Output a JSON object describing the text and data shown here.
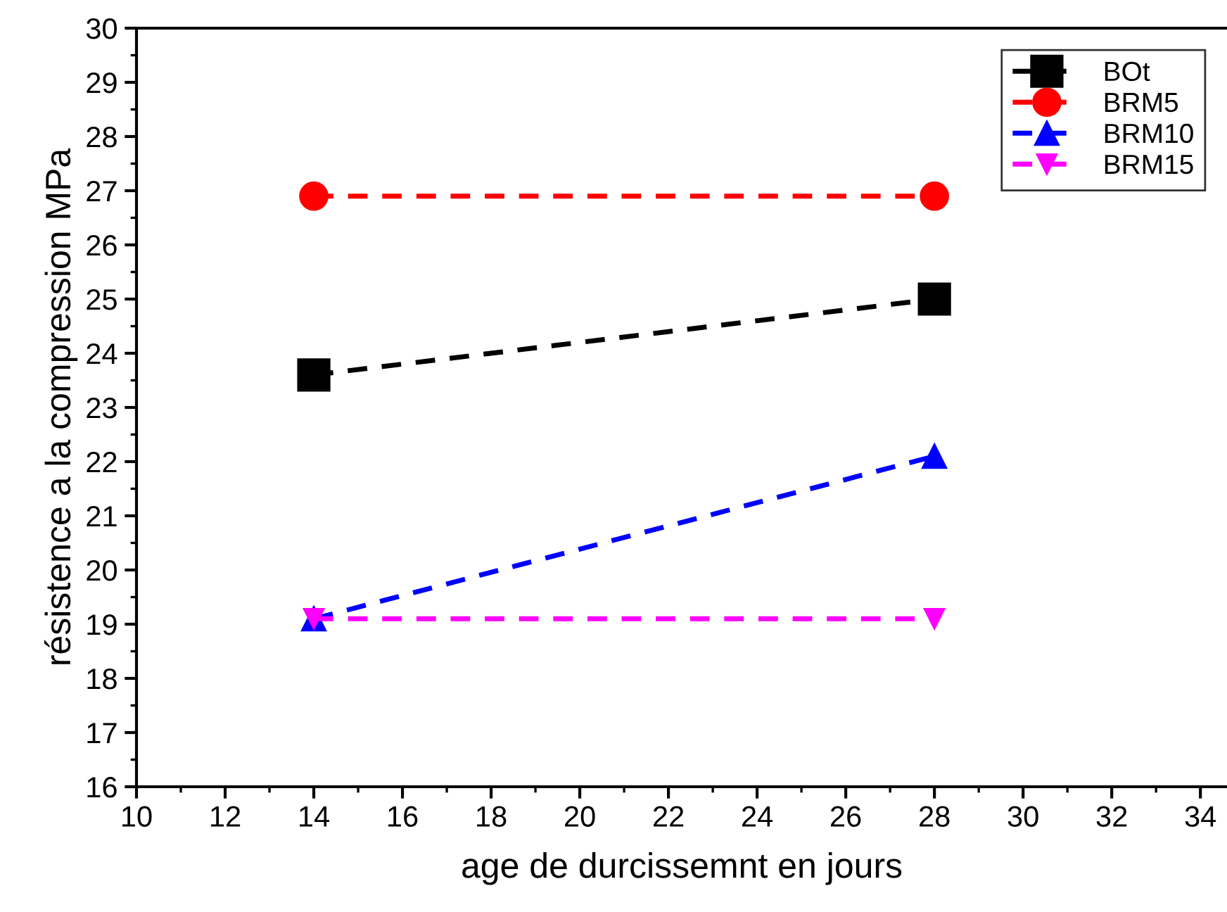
{
  "chart_data": {
    "type": "line",
    "xlabel": "age de durcissemnt en jours",
    "ylabel": "résistence a la compression MPa",
    "x": [
      14,
      28
    ],
    "series": [
      {
        "name": "BOt",
        "color": "#000000",
        "marker": "square",
        "values": [
          23.6,
          25.0
        ]
      },
      {
        "name": "BRM5",
        "color": "#ff0000",
        "marker": "circle",
        "values": [
          26.9,
          26.9
        ]
      },
      {
        "name": "BRM10",
        "color": "#0000ff",
        "marker": "triangle",
        "values": [
          19.1,
          22.1
        ]
      },
      {
        "name": "BRM15",
        "color": "#ff00ff",
        "marker": "triangle_down",
        "values": [
          19.1,
          19.1
        ]
      }
    ],
    "line_style": "dashed",
    "xlim": [
      10,
      34.6
    ],
    "ylim": [
      16,
      30
    ],
    "xticks": [
      10,
      12,
      14,
      16,
      18,
      20,
      22,
      24,
      26,
      28,
      30,
      32,
      34
    ],
    "yticks": [
      16,
      17,
      18,
      19,
      20,
      21,
      22,
      23,
      24,
      25,
      26,
      27,
      28,
      29,
      30
    ],
    "grid": false,
    "legend": "top right"
  }
}
